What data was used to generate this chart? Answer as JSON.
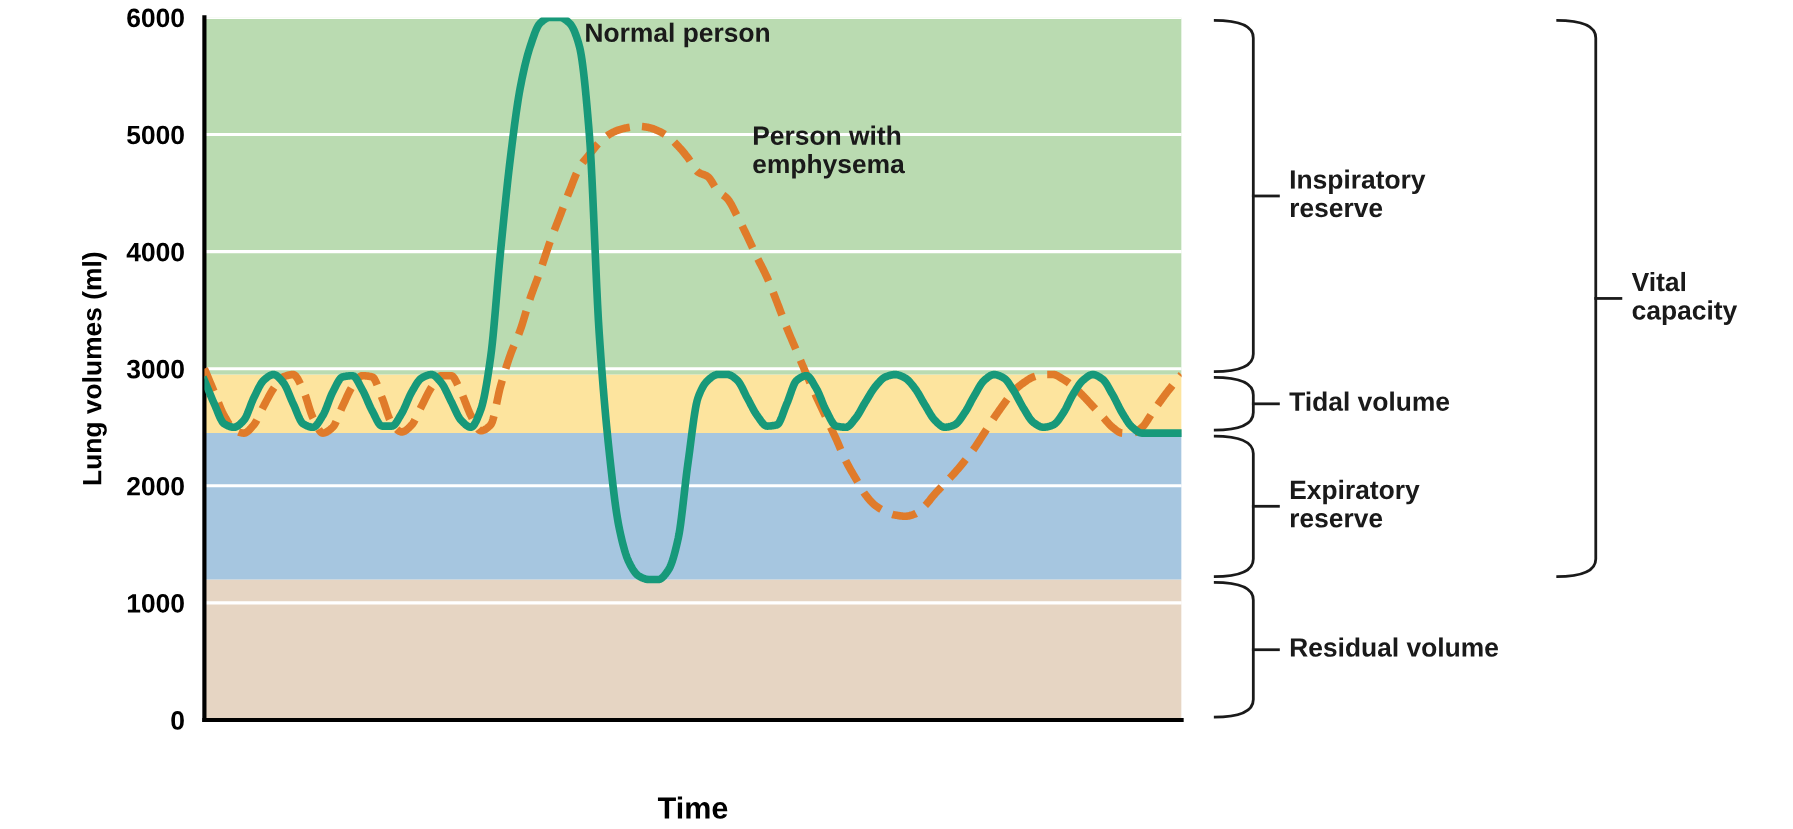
{
  "chart_data": {
    "type": "line",
    "xlabel": "Time",
    "ylabel": "Lung volumes (ml)",
    "categories": [
      null,
      null,
      null,
      null,
      null,
      null,
      null,
      null,
      null,
      null,
      null,
      null,
      null,
      null,
      null,
      null,
      null,
      null,
      null,
      null,
      null,
      null,
      null,
      null,
      null,
      null,
      null,
      null,
      null,
      null,
      null,
      null,
      null,
      null,
      null,
      null,
      null,
      null,
      null,
      null,
      null,
      null,
      null,
      null,
      null,
      null,
      null,
      null,
      null,
      null,
      null,
      null,
      null,
      null,
      null,
      null,
      null,
      null,
      null,
      null,
      null,
      null,
      null,
      null,
      null,
      null,
      null,
      null,
      null,
      null,
      null,
      null,
      null,
      null,
      null,
      null,
      null,
      null,
      null,
      null,
      null,
      null,
      null,
      null,
      null,
      null,
      null,
      null,
      null,
      null,
      null,
      null,
      null,
      null,
      null,
      null,
      null,
      null,
      null,
      null
    ],
    "series": [
      {
        "name": "Normal person",
        "color": "#17997a",
        "line_style": "solid",
        "values": [
          2900,
          2700,
          2530,
          2500,
          2560,
          2750,
          2900,
          2950,
          2880,
          2700,
          2530,
          2500,
          2600,
          2800,
          2930,
          2940,
          2820,
          2640,
          2510,
          2510,
          2620,
          2800,
          2920,
          2950,
          2880,
          2720,
          2560,
          2500,
          2650,
          3100,
          4000,
          4800,
          5400,
          5750,
          5950,
          6000,
          6000,
          5950,
          5750,
          5000,
          3300,
          2300,
          1650,
          1350,
          1230,
          1200,
          1200,
          1280,
          1550,
          2200,
          2750,
          2900,
          2950,
          2950,
          2900,
          2750,
          2600,
          2510,
          2520,
          2700,
          2900,
          2940,
          2830,
          2640,
          2510,
          2500,
          2580,
          2720,
          2850,
          2930,
          2950,
          2920,
          2830,
          2690,
          2560,
          2500,
          2520,
          2620,
          2770,
          2900,
          2950,
          2920,
          2810,
          2660,
          2540,
          2500,
          2520,
          2620,
          2780,
          2900,
          2950,
          2910,
          2780,
          2620,
          2500,
          2450,
          2450,
          2450,
          2450,
          2450
        ]
      },
      {
        "name": "Person with\nemphysema",
        "color": "#e07b2a",
        "line_style": "dashed",
        "values": [
          3000,
          2800,
          2600,
          2480,
          2450,
          2520,
          2680,
          2830,
          2930,
          2950,
          2820,
          2580,
          2450,
          2500,
          2680,
          2850,
          2940,
          2930,
          2750,
          2530,
          2460,
          2520,
          2680,
          2840,
          2940,
          2940,
          2800,
          2600,
          2470,
          2520,
          2850,
          3120,
          3330,
          3600,
          3830,
          4080,
          4300,
          4520,
          4720,
          4830,
          4930,
          5000,
          5040,
          5060,
          5070,
          5060,
          5030,
          4980,
          4900,
          4800,
          4680,
          4640,
          4520,
          4450,
          4300,
          4130,
          3950,
          3780,
          3570,
          3350,
          3150,
          2950,
          2760,
          2580,
          2400,
          2210,
          2060,
          1920,
          1830,
          1780,
          1750,
          1740,
          1760,
          1830,
          1930,
          2020,
          2110,
          2210,
          2320,
          2450,
          2580,
          2700,
          2810,
          2880,
          2930,
          2950,
          2950,
          2910,
          2850,
          2770,
          2680,
          2590,
          2500,
          2450,
          2450,
          2500,
          2620,
          2740,
          2850,
          2950
        ]
      }
    ],
    "ylim": [
      0,
      6000
    ],
    "yticks": [
      0,
      1000,
      2000,
      3000,
      4000,
      5000,
      6000
    ],
    "grid": "y",
    "tick_labels": "y",
    "legend": false,
    "bands": [
      {
        "axis": "y",
        "from": 0,
        "to": 1200,
        "color": "#e6d5c3"
      },
      {
        "axis": "y",
        "from": 1200,
        "to": 2450,
        "color": "#a6c6e0"
      },
      {
        "axis": "y",
        "from": 2450,
        "to": 2950,
        "color": "#fde49e"
      },
      {
        "axis": "y",
        "from": 2950,
        "to": 6000,
        "color": "#badbb1"
      }
    ],
    "annotations": [
      "Residual volume",
      "Expiratory\nreserve",
      "Tidal volume",
      "Inspiratory\nreserve",
      "Vital\ncapacity"
    ]
  }
}
